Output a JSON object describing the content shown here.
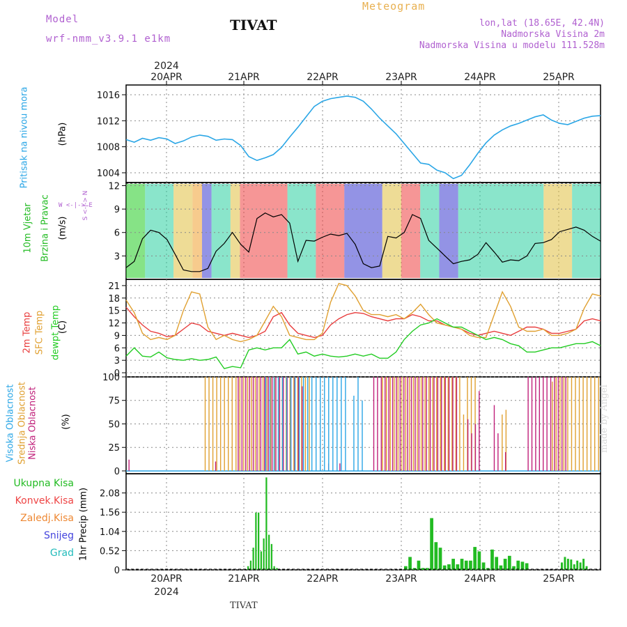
{
  "header": {
    "model_label": "Model",
    "model_name": "wrf-nmm_v3.9.1 e1km",
    "station": "TIVAT",
    "title": "Meteogram",
    "lonlat": "lon,lat (18.65E, 42.4N)",
    "altitude": "Nadmorska Visina 2m",
    "model_altitude": "Nadmorska Visina u modelu 111.528m"
  },
  "footer": {
    "station": "TIVAT",
    "credit": "made by Angel"
  },
  "panel_labels": {
    "pressure": [
      "Pritisak na nivou mora",
      "(hPa)"
    ],
    "wind": [
      "10m Vjetar",
      "Brzina i Pravac",
      "(m/s)"
    ],
    "wind_compass": "S <-|-> N",
    "wind_compass_we": "W <-|-> E",
    "temp": [
      "2m Temp",
      "SFC Temp",
      "dewpt Temp",
      "(C)"
    ],
    "cloud": [
      "Visoka Oblacnost",
      "Srednja Oblacnost",
      "Niska Oblacnost",
      "(%)"
    ],
    "precip_axis": [
      "1hr Precip (mm)"
    ]
  },
  "precip_legend": [
    {
      "label": "Ukupna Kisa",
      "color": "#22bb22"
    },
    {
      "label": "Konvek.Kisa",
      "color": "#ee4444"
    },
    {
      "label": "Zaledj.Kisa",
      "color": "#ee8833"
    },
    {
      "label": "Snijeg",
      "color": "#4444dd"
    },
    {
      "label": "Grad",
      "color": "#22bbbb"
    }
  ],
  "colors": {
    "pressure": "#2aa6e6",
    "temp2m": "#e83c3c",
    "sfc": "#e0a030",
    "dewpt": "#22cc22",
    "cloud_high": "#2aa6e6",
    "cloud_mid": "#e0a030",
    "cloud_low": "#c0207a",
    "wind_speed": "#000000"
  },
  "chart_data": [
    {
      "type": "line",
      "panel": "pressure",
      "x_ticks": [
        "20APR",
        "21APR",
        "22APR",
        "23APR",
        "24APR",
        "25APR"
      ],
      "year": "2024",
      "yticks": [
        1004,
        1008,
        1012,
        1016
      ],
      "ylim": [
        1002.5,
        1017.5
      ],
      "series": [
        {
          "values": [
            1009.1,
            1008.7,
            1009.3,
            1009.0,
            1009.4,
            1009.2,
            1008.5,
            1008.9,
            1009.5,
            1009.8,
            1009.6,
            1009.0,
            1009.2,
            1009.1,
            1008.2,
            1006.5,
            1005.9,
            1006.3,
            1006.8,
            1007.9,
            1009.5,
            1011.0,
            1012.6,
            1014.2,
            1015.0,
            1015.4,
            1015.6,
            1015.8,
            1015.6,
            1015.0,
            1013.8,
            1012.4,
            1011.2,
            1010.0,
            1008.5,
            1007.0,
            1005.5,
            1005.3,
            1004.4,
            1004.0,
            1003.1,
            1003.6,
            1005.2,
            1007.0,
            1008.6,
            1009.8,
            1010.6,
            1011.2,
            1011.6,
            1012.1,
            1012.6,
            1012.9,
            1012.1,
            1011.6,
            1011.4,
            1011.9,
            1012.4,
            1012.7,
            1012.8
          ]
        }
      ]
    },
    {
      "type": "line",
      "panel": "wind",
      "yticks": [
        3,
        6,
        9,
        12
      ],
      "ylim": [
        0,
        12.4
      ],
      "series": [
        {
          "name": "wind speed",
          "values": [
            1.5,
            2.3,
            5.2,
            6.3,
            6.0,
            5.1,
            3.2,
            1.2,
            1.0,
            1.0,
            1.4,
            3.6,
            4.6,
            6.0,
            4.5,
            3.5,
            7.8,
            8.5,
            8.0,
            8.3,
            7.2,
            2.3,
            5.0,
            4.9,
            5.4,
            5.8,
            5.6,
            5.9,
            4.5,
            2.0,
            1.5,
            1.7,
            5.5,
            5.3,
            6.0,
            8.3,
            7.8,
            5.0,
            4.0,
            3.0,
            2.0,
            2.3,
            2.5,
            3.2,
            4.7,
            3.5,
            2.2,
            2.5,
            2.4,
            3.0,
            4.6,
            4.7,
            5.1,
            6.1,
            6.4,
            6.7,
            6.3,
            5.5,
            4.9
          ]
        }
      ]
    },
    {
      "type": "line",
      "panel": "temp",
      "yticks": [
        0,
        3,
        6,
        9,
        12,
        15,
        18,
        21
      ],
      "ylim": [
        -1,
        22.5
      ],
      "series": [
        {
          "values": [
            15.8,
            13.5,
            11.5,
            10.0,
            9.5,
            8.7,
            9.0,
            10.5,
            12.0,
            11.5,
            10.0,
            9.5,
            9.0,
            9.5,
            9.0,
            8.5,
            9.0,
            10.0,
            13.5,
            14.5,
            11.5,
            9.5,
            9.0,
            8.5,
            9.0,
            11.5,
            13.0,
            14.0,
            14.5,
            14.3,
            13.5,
            13.0,
            12.5,
            13.0,
            13.0,
            14.0,
            13.5,
            12.5,
            12.5,
            11.5,
            11.0,
            10.5,
            9.5,
            9.0,
            9.5,
            10.0,
            9.5,
            9.0,
            10.0,
            11.0,
            11.0,
            10.5,
            9.5,
            9.5,
            10.0,
            10.5,
            12.5,
            13.0,
            12.5
          ]
        },
        {
          "values": [
            17.5,
            14.5,
            9.5,
            8.0,
            8.5,
            8.0,
            9.0,
            15.0,
            19.5,
            19.0,
            11.0,
            8.0,
            9.0,
            8.0,
            7.5,
            8.0,
            9.0,
            12.5,
            16.0,
            13.5,
            9.0,
            8.5,
            8.0,
            8.0,
            9.5,
            17.0,
            21.5,
            21.0,
            18.5,
            15.0,
            14.0,
            14.0,
            13.5,
            14.0,
            13.0,
            14.5,
            16.5,
            14.0,
            12.0,
            11.5,
            11.0,
            10.5,
            9.0,
            8.5,
            8.5,
            14.0,
            19.5,
            16.0,
            11.0,
            10.0,
            10.0,
            10.5,
            9.0,
            9.0,
            9.5,
            10.5,
            15.5,
            19.0,
            18.5
          ]
        },
        {
          "values": [
            4.0,
            6.0,
            4.0,
            3.8,
            5.0,
            3.6,
            3.2,
            3.0,
            3.4,
            3.0,
            3.2,
            3.8,
            1.0,
            1.5,
            1.2,
            5.5,
            6.0,
            5.5,
            6.0,
            6.0,
            8.0,
            4.5,
            5.0,
            4.0,
            4.5,
            4.0,
            3.8,
            4.0,
            4.5,
            4.0,
            4.5,
            3.5,
            3.5,
            5.0,
            8.0,
            10.0,
            11.5,
            12.0,
            13.0,
            12.0,
            11.0,
            11.0,
            10.0,
            9.0,
            8.0,
            8.5,
            8.0,
            7.0,
            6.5,
            5.0,
            5.0,
            5.5,
            6.0,
            6.0,
            6.5,
            7.0,
            7.0,
            7.5,
            6.5
          ]
        }
      ]
    },
    {
      "type": "bar",
      "panel": "cloud",
      "yticks": [
        0,
        25,
        50,
        75,
        100
      ],
      "ylim": [
        -3,
        100
      ],
      "series": [
        {
          "values": [
            0,
            0,
            0,
            0,
            0,
            0,
            0,
            0,
            0,
            0,
            0,
            0,
            0,
            0,
            0,
            0,
            0,
            0,
            0,
            0,
            0,
            0,
            0,
            0,
            0,
            0,
            0,
            0,
            0,
            0,
            0,
            0,
            0,
            100,
            100,
            100,
            100,
            100,
            100,
            100,
            100,
            100,
            100,
            100,
            100,
            100,
            100,
            100,
            100,
            100,
            100,
            100,
            100,
            0,
            80,
            100,
            75,
            0,
            0,
            0,
            0,
            0,
            0,
            0,
            0,
            0,
            0,
            0,
            0,
            0,
            0,
            0,
            0,
            0,
            0,
            0,
            0,
            0,
            0,
            0,
            0,
            0,
            0,
            0,
            0,
            0,
            0,
            0,
            0,
            0,
            0,
            0,
            0,
            0,
            0,
            0,
            0,
            0,
            0,
            0,
            0,
            0,
            0,
            0,
            0,
            0,
            0,
            0,
            0,
            0,
            0,
            0,
            0
          ]
        },
        {
          "values": [
            0,
            0,
            0,
            0,
            0,
            0,
            0,
            0,
            0,
            0,
            0,
            0,
            0,
            0,
            0,
            0,
            0,
            0,
            0,
            0,
            100,
            100,
            100,
            100,
            100,
            100,
            100,
            100,
            100,
            100,
            100,
            100,
            100,
            100,
            100,
            100,
            100,
            100,
            100,
            100,
            100,
            100,
            100,
            100,
            100,
            100,
            100,
            100,
            0,
            0,
            0,
            0,
            0,
            0,
            0,
            0,
            0,
            0,
            0,
            0,
            0,
            0,
            0,
            0,
            0,
            0,
            100,
            100,
            100,
            100,
            100,
            100,
            100,
            100,
            100,
            100,
            100,
            100,
            100,
            100,
            100,
            100,
            100,
            100,
            100,
            100,
            100,
            60,
            100,
            100,
            100,
            0,
            0,
            0,
            0,
            0,
            0,
            60,
            65,
            0,
            0,
            0,
            0,
            0,
            0,
            0,
            0,
            0,
            0,
            0,
            95,
            100,
            100,
            100,
            100,
            100,
            100,
            100,
            100,
            100,
            100,
            100,
            100
          ]
        },
        {
          "values": [
            12,
            0,
            0,
            0,
            0,
            0,
            0,
            0,
            0,
            0,
            0,
            0,
            0,
            0,
            0,
            0,
            0,
            0,
            0,
            0,
            0,
            0,
            0,
            10,
            0,
            0,
            0,
            0,
            0,
            100,
            100,
            100,
            100,
            100,
            100,
            100,
            100,
            100,
            100,
            100,
            100,
            100,
            100,
            100,
            100,
            100,
            90,
            0,
            0,
            0,
            0,
            0,
            0,
            8,
            0,
            0,
            8,
            0,
            0,
            0,
            0,
            0,
            0,
            0,
            0,
            100,
            100,
            100,
            100,
            100,
            100,
            100,
            100,
            100,
            100,
            100,
            100,
            100,
            100,
            100,
            100,
            100,
            100,
            100,
            100,
            100,
            100,
            100,
            0,
            0,
            55,
            40,
            50,
            85,
            0,
            0,
            0,
            70,
            40,
            0,
            20,
            0,
            0,
            0,
            0,
            0,
            100,
            100,
            100,
            100,
            100,
            100,
            100,
            100,
            100,
            100,
            100,
            0,
            0,
            0,
            0,
            0,
            0,
            0,
            0,
            0
          ]
        }
      ]
    },
    {
      "type": "bar",
      "panel": "precip",
      "yticks": [
        0,
        0.52,
        1.04,
        1.56,
        2.08
      ],
      "ylim": [
        0,
        2.6
      ],
      "series": [
        {
          "values": [
            0.1,
            0.25,
            0.6,
            1.55,
            1.55,
            0.5,
            0.85,
            2.5,
            0.95,
            0.7,
            0.1,
            0.05
          ]
        },
        {
          "values": [
            0.1,
            0.35,
            0.05,
            0.25,
            0.05,
            0.05,
            1.4,
            0.75,
            0.6,
            0.12,
            0.15,
            0.3,
            0.15,
            0.3,
            0.25,
            0.25,
            0.62,
            0.5,
            0.2,
            0.05,
            0.55,
            0.35,
            0.12,
            0.3,
            0.38,
            0.1,
            0.25,
            0.22,
            0.18
          ]
        },
        {
          "values": [
            0.2,
            0.35,
            0.3,
            0.28,
            0.15,
            0.25,
            0.2,
            0.3,
            0.1
          ]
        }
      ]
    }
  ]
}
